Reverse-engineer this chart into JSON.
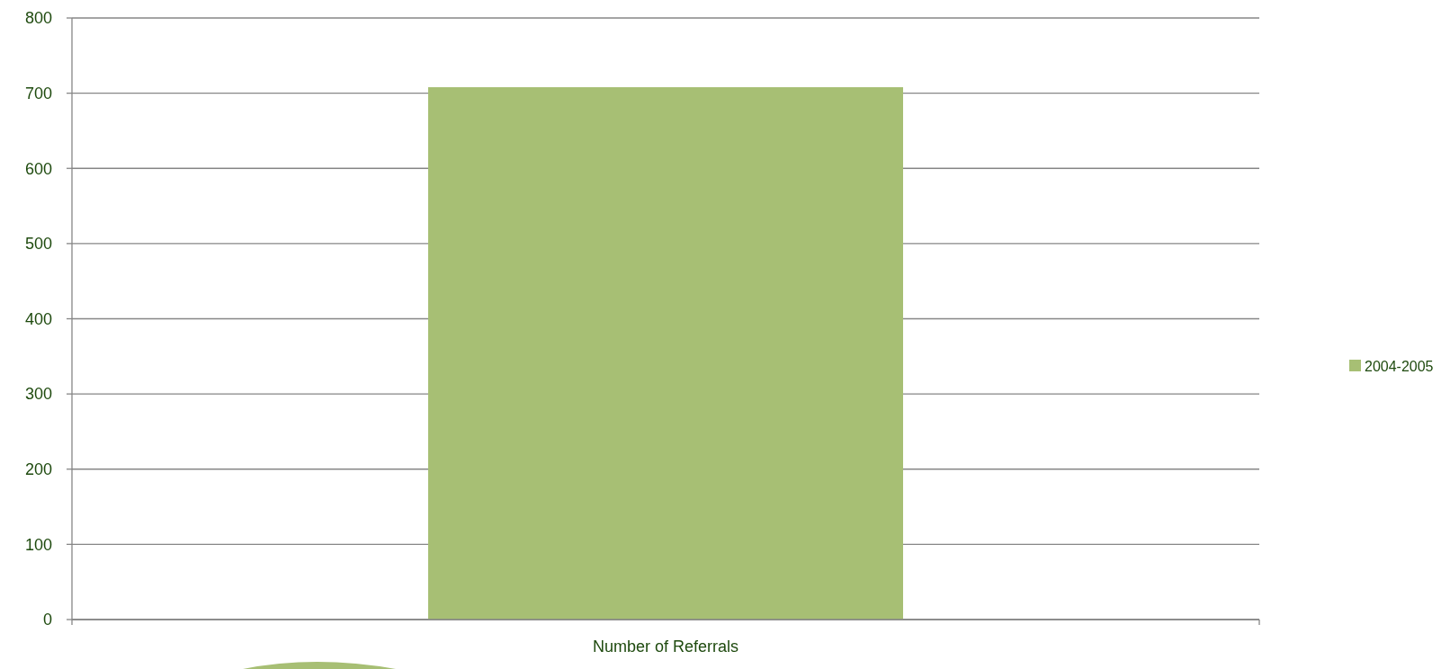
{
  "chart_data": {
    "type": "bar",
    "categories": [
      "Number of Referrals"
    ],
    "series": [
      {
        "name": "2004-2005",
        "color": "#a7bf74",
        "values": [
          708
        ]
      }
    ],
    "ylim": [
      0,
      800
    ],
    "yticks": [
      0,
      100,
      200,
      300,
      400,
      500,
      600,
      700,
      800
    ],
    "grid": "y",
    "legend": "right"
  }
}
